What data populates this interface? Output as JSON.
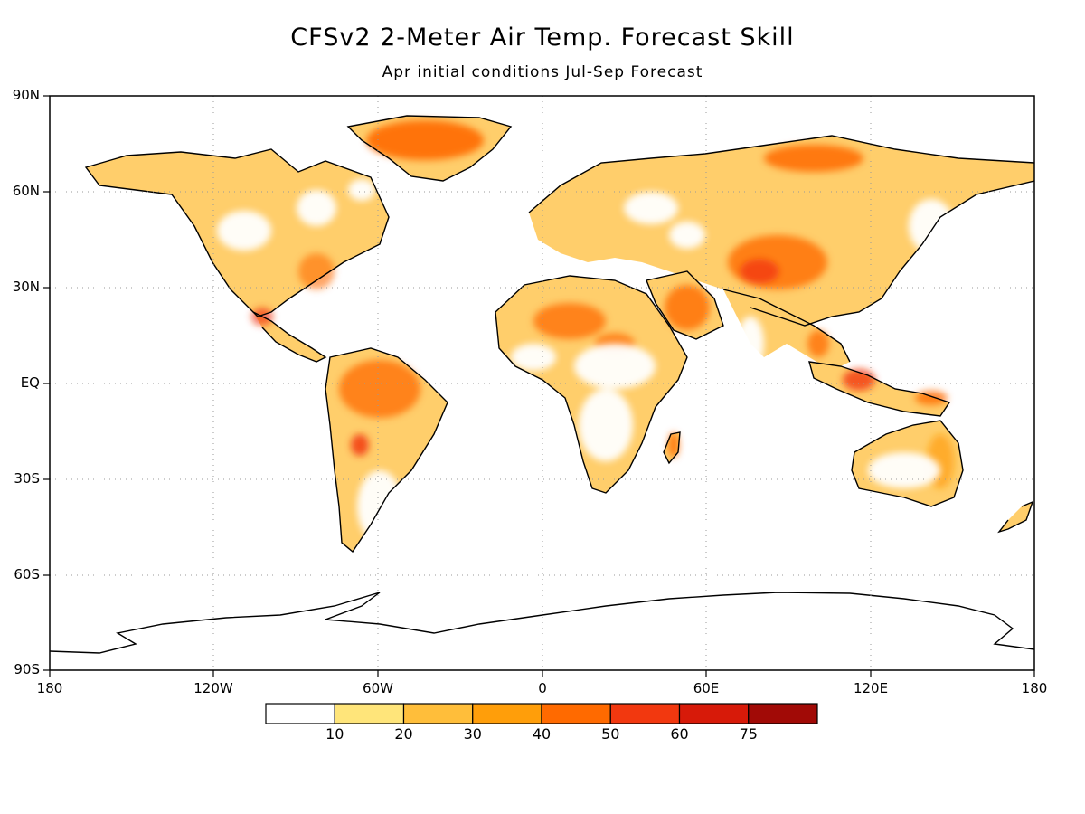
{
  "title": "CFSv2 2-Meter Air Temp. Forecast Skill",
  "subtitle": "Apr initial conditions  Jul-Sep Forecast",
  "lat_labels": [
    "90N",
    "60N",
    "30N",
    "EQ",
    "30S",
    "60S",
    "90S"
  ],
  "lon_labels": [
    "180",
    "120W",
    "60W",
    "0",
    "60E",
    "120E",
    "180"
  ],
  "colorbar": {
    "colors": [
      "#ffffff",
      "#ffe57a",
      "#ffbe3a",
      "#ff9e0a",
      "#ff6a00",
      "#f2380f",
      "#d71a09",
      "#a10a06"
    ],
    "labels": [
      "10",
      "20",
      "30",
      "40",
      "50",
      "60",
      "75"
    ]
  },
  "map": {
    "projection": "equirectangular",
    "lat_range": [
      -90,
      90
    ],
    "lon_range": [
      -180,
      180
    ],
    "grid": true
  }
}
